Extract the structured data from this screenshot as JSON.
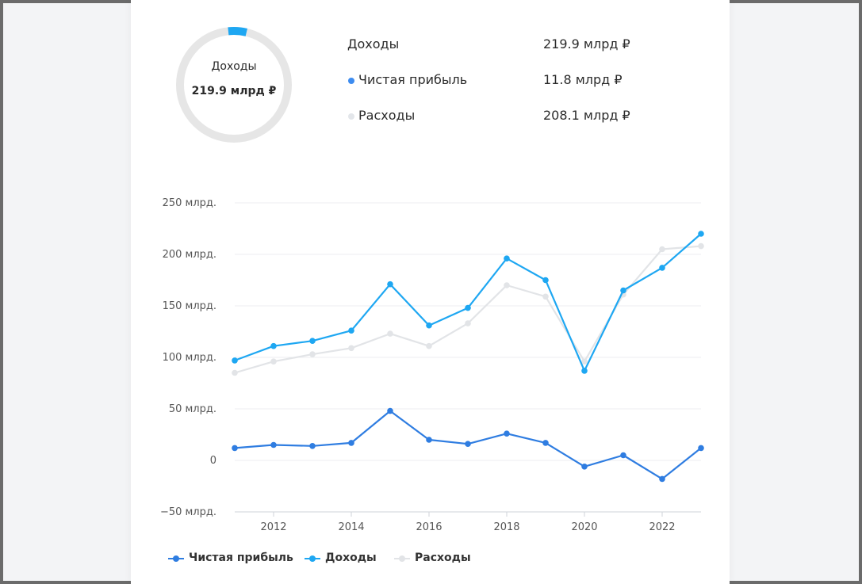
{
  "donut": {
    "title": "Доходы",
    "value": "219.9 млрд ₽",
    "profit_share": 0.054,
    "track_color": "#e6e6e6",
    "accent_color": "#1ea7f2"
  },
  "summary": [
    {
      "label": "Доходы",
      "value": "219.9 млрд ₽",
      "dot_color": ""
    },
    {
      "label": "Чистая прибыль",
      "value": "11.8 млрд ₽",
      "dot_color": "#3d8cf0"
    },
    {
      "label": "Расходы",
      "value": "208.1 млрд ₽",
      "dot_color": "#e3e6ea"
    }
  ],
  "chart_data": {
    "type": "line",
    "x": [
      2011,
      2012,
      2013,
      2014,
      2015,
      2016,
      2017,
      2018,
      2019,
      2020,
      2021,
      2022,
      2023
    ],
    "x_tick_labels": [
      "2012",
      "2014",
      "2016",
      "2018",
      "2020",
      "2022"
    ],
    "x_ticks": [
      2012,
      2014,
      2016,
      2018,
      2020,
      2022
    ],
    "y_tick_labels": [
      "250 млрд.",
      "200 млрд.",
      "150 млрд.",
      "100 млрд.",
      "50 млрд.",
      "0",
      "−50 млрд."
    ],
    "y_ticks": [
      250,
      200,
      150,
      100,
      50,
      0,
      -50
    ],
    "ylim": [
      -50,
      250
    ],
    "xlim": [
      2011,
      2023
    ],
    "grid": true,
    "legend_position": "bottom-left",
    "series": [
      {
        "name": "Чистая прибыль",
        "color": "#2f7de1",
        "values": [
          12,
          15,
          14,
          17,
          48,
          20,
          16,
          26,
          17,
          -6,
          5,
          -18,
          12
        ]
      },
      {
        "name": "Доходы",
        "color": "#1ea7f2",
        "values": [
          97,
          111,
          116,
          126,
          171,
          131,
          148,
          196,
          175,
          87,
          165,
          187,
          220
        ]
      },
      {
        "name": "Расходы",
        "color": "#e2e4e7",
        "values": [
          85,
          96,
          103,
          109,
          123,
          111,
          133,
          170,
          159,
          96,
          161,
          205,
          208
        ]
      }
    ]
  }
}
